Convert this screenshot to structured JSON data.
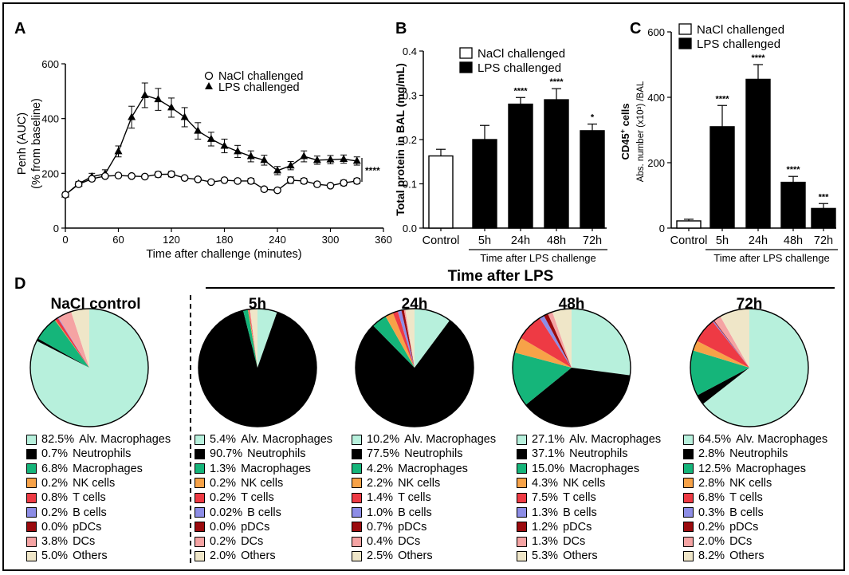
{
  "panel_labels": [
    "A",
    "B",
    "C",
    "D"
  ],
  "colors": {
    "alv_macrophages": "#b7f0dc",
    "neutrophils": "#000000",
    "macrophages": "#15b57a",
    "nk_cells": "#f7a248",
    "t_cells": "#ee3a44",
    "b_cells": "#8d8de6",
    "pdcs": "#9b0a0e",
    "dcs": "#f5a3a3",
    "others": "#efe6c8"
  },
  "chart_data": [
    {
      "id": "A",
      "type": "line",
      "title": "",
      "xlabel": "Time after challenge (minutes)",
      "ylabel": "Penh (AUC)",
      "ylabel2": "(% from baseline)",
      "xlim": [
        0,
        360
      ],
      "ylim": [
        0,
        600
      ],
      "xticks": [
        "0",
        "60",
        "120",
        "180",
        "240",
        "300",
        "360"
      ],
      "yticks": [
        "0",
        "200",
        "400",
        "600"
      ],
      "significance": "****",
      "series": [
        {
          "name": "NaCl challenged",
          "marker": "circle-open",
          "x": [
            0,
            15,
            30,
            45,
            60,
            75,
            90,
            105,
            120,
            135,
            150,
            165,
            180,
            195,
            210,
            225,
            240,
            255,
            270,
            285,
            300,
            315,
            330
          ],
          "y": [
            122,
            160,
            180,
            190,
            192,
            190,
            188,
            196,
            197,
            183,
            178,
            168,
            175,
            172,
            172,
            142,
            138,
            175,
            172,
            160,
            155,
            165,
            172
          ],
          "err": [
            8,
            8,
            8,
            6,
            6,
            6,
            6,
            10,
            10,
            6,
            6,
            6,
            6,
            6,
            10,
            8,
            6,
            12,
            10,
            8,
            6,
            10,
            10
          ]
        },
        {
          "name": "LPS challenged",
          "marker": "triangle-filled",
          "x": [
            0,
            15,
            30,
            45,
            60,
            75,
            90,
            105,
            120,
            135,
            150,
            165,
            180,
            195,
            210,
            225,
            240,
            255,
            270,
            285,
            300,
            315,
            330
          ],
          "y": [
            122,
            162,
            188,
            198,
            280,
            405,
            485,
            470,
            440,
            405,
            355,
            325,
            300,
            280,
            262,
            248,
            210,
            228,
            262,
            248,
            250,
            252,
            245
          ],
          "err": [
            8,
            8,
            12,
            15,
            20,
            40,
            45,
            40,
            35,
            35,
            30,
            25,
            25,
            22,
            20,
            18,
            15,
            15,
            20,
            15,
            15,
            15,
            15
          ]
        }
      ]
    },
    {
      "id": "B",
      "type": "bar",
      "ylabel": "Total protein in BAL (mg/mL)",
      "ylim": [
        0,
        0.4
      ],
      "yticks": [
        "0.0",
        "0.1",
        "0.2",
        "0.3",
        "0.4"
      ],
      "categories": [
        "Control",
        "5h",
        "24h",
        "48h",
        "72h"
      ],
      "values": [
        0.163,
        0.2,
        0.28,
        0.29,
        0.22
      ],
      "errors": [
        0.015,
        0.032,
        0.015,
        0.025,
        0.015
      ],
      "significance": [
        "",
        "",
        "****",
        "****",
        "*"
      ],
      "xlabel": "Time after LPS challenge",
      "legend": [
        "NaCl challenged",
        "LPS challenged"
      ]
    },
    {
      "id": "C",
      "type": "bar",
      "ylabel": "Abs. number (x10³) /BAL",
      "ylabel_title": "CD45",
      "ylabel_title_sup": "+",
      "ylabel_title_rest": " cells",
      "ylim": [
        0,
        600
      ],
      "yticks": [
        "0",
        "200",
        "400",
        "600"
      ],
      "categories": [
        "Control",
        "5h",
        "24h",
        "48h",
        "72h"
      ],
      "values": [
        22,
        310,
        455,
        140,
        60
      ],
      "errors": [
        5,
        65,
        45,
        18,
        15
      ],
      "significance": [
        "",
        "****",
        "****",
        "****",
        "***"
      ],
      "xlabel": "Time after LPS challenge",
      "legend": [
        "NaCl challenged",
        "LPS challenged"
      ]
    },
    {
      "id": "D",
      "type": "pie",
      "section_title": "Time after LPS",
      "categories": [
        "Alv. Macrophages",
        "Neutrophils",
        "Macrophages",
        "NK cells",
        "T cells",
        "B cells",
        "pDCs",
        "DCs",
        "Others"
      ],
      "pies": [
        {
          "title": "NaCl control",
          "values": [
            "82.5%",
            "0.7%",
            "6.8%",
            "0.2%",
            "0.8%",
            "0.2%",
            "0.0%",
            "3.8%",
            "5.0%"
          ]
        },
        {
          "title": "5h",
          "values": [
            "5.4%",
            "90.7%",
            "1.3%",
            "0.2%",
            "0.2%",
            "0.02%",
            "0.0%",
            "0.2%",
            "2.0%"
          ]
        },
        {
          "title": "24h",
          "values": [
            "10.2%",
            "77.5%",
            "4.2%",
            "2.2%",
            "1.4%",
            "1.0%",
            "0.7%",
            "0.4%",
            "2.5%"
          ]
        },
        {
          "title": "48h",
          "values": [
            "27.1%",
            "37.1%",
            "15.0%",
            "4.3%",
            "7.5%",
            "1.3%",
            "1.2%",
            "1.3%",
            "5.3%"
          ]
        },
        {
          "title": "72h",
          "values": [
            "64.5%",
            "2.8%",
            "12.5%",
            "2.8%",
            "6.8%",
            "0.3%",
            "0.2%",
            "2.0%",
            "8.2%"
          ]
        }
      ]
    }
  ]
}
